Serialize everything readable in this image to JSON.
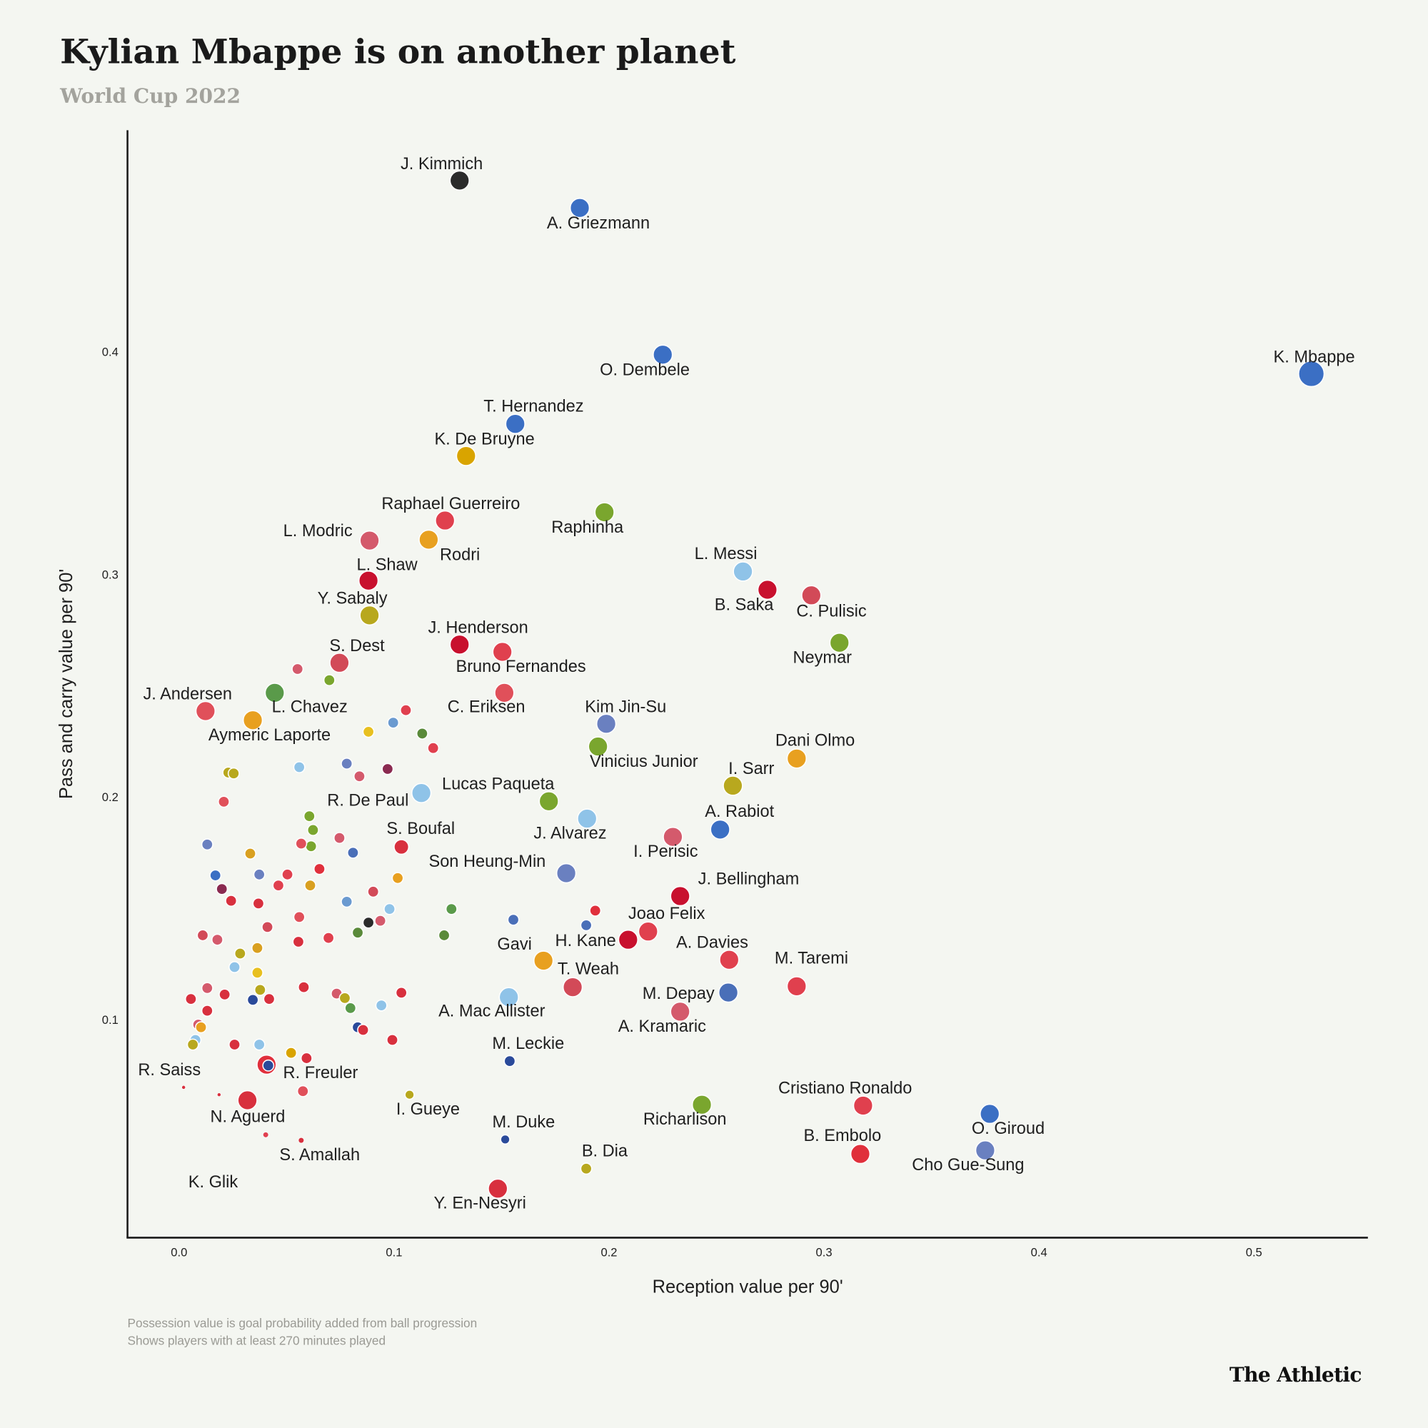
{
  "chart_data": {
    "type": "scatter",
    "title": "Kylian Mbappe is on another planet",
    "subtitle": "World Cup 2022",
    "x_label": "Reception value per 90'",
    "y_label": "Pass and carry value per 90'",
    "notes": [
      "Possession value is goal probability added from ball progression",
      "Shows players with at least 270 minutes played"
    ],
    "source": "The Athletic",
    "xlim": [
      -0.024,
      0.553
    ],
    "ylim": [
      0.003,
      0.5
    ],
    "xticks": [
      {
        "value": 0,
        "label": "0.0"
      },
      0.1,
      0.2,
      0.3,
      0.4,
      0.5
    ],
    "yticks": [
      0.1,
      0.2,
      0.3,
      0.4
    ],
    "labels": [
      "J. Kimmich",
      "A. Griezmann",
      "K. Mbappe",
      "O. Dembele",
      "T. Hernandez",
      "K. De Bruyne",
      "Raphael Guerreiro",
      "Raphinha",
      "L. Modric",
      "Rodri",
      "L. Shaw",
      "Y. Sabaly",
      "L. Messi",
      "B. Saka",
      "C. Pulisic",
      "Neymar",
      "J. Henderson",
      "Bruno Fernandes",
      "S. Dest",
      "J. Andersen",
      "L. Chavez",
      "Aymeric Laporte",
      "C. Eriksen",
      "Kim Jin-Su",
      "Dani Olmo",
      "Vinicius Junior",
      "I. Sarr",
      "Lucas Paqueta",
      "R. De Paul",
      "A. Rabiot",
      "S. Boufal",
      "J. Alvarez",
      "I. Perisic",
      "Son Heung-Min",
      "J. Bellingham",
      "Joao Felix",
      "H. Kane",
      "Gavi",
      "A. Davies",
      "M. Taremi",
      "T. Weah",
      "M. Depay",
      "A. Mac Allister",
      "A. Kramaric",
      "M. Leckie",
      "Cristiano Ronaldo",
      "O. Giroud",
      "Richarlison",
      "B. Embolo",
      "Cho Gue-Sung",
      "M. Duke",
      "B. Dia",
      "I. Gueye",
      "Y. En-Nesyri",
      "R. Saiss",
      "R. Freuler",
      "N. Aguerd",
      "S. Amallah",
      "K. Glik",
      null,
      null,
      null,
      null,
      null,
      null,
      null,
      null,
      null,
      null,
      null,
      null,
      null,
      null,
      null,
      null,
      null,
      null,
      null,
      null,
      null,
      null,
      null,
      null,
      null,
      null,
      null,
      null,
      null,
      null,
      null,
      null,
      null,
      null,
      null,
      null,
      null,
      null,
      null,
      null,
      null,
      null,
      null,
      null,
      null,
      null,
      null,
      null,
      null,
      null,
      null,
      null,
      null,
      null,
      null,
      null,
      null,
      null,
      null,
      null,
      null,
      null,
      null,
      null,
      null,
      null,
      null,
      null,
      null,
      null,
      null,
      null,
      null,
      null,
      null,
      null,
      null,
      null,
      null
    ],
    "x": [
      0.1305,
      0.1864,
      0.5267,
      0.225,
      0.1564,
      0.1335,
      0.1237,
      0.1979,
      0.0886,
      0.1161,
      0.0881,
      0.0886,
      0.2623,
      0.2737,
      0.2941,
      0.3072,
      0.1305,
      0.1504,
      0.0746,
      0.0123,
      0.0445,
      0.0343,
      0.1513,
      0.1987,
      0.2873,
      0.1949,
      0.2576,
      0.172,
      0.1127,
      0.2517,
      0.1034,
      0.1898,
      0.2297,
      0.1801,
      0.2331,
      0.2182,
      0.2089,
      0.1695,
      0.2559,
      0.2873,
      0.1831,
      0.2555,
      0.1534,
      0.2331,
      0.1538,
      0.3182,
      0.3771,
      0.2432,
      0.3169,
      0.375,
      0.1517,
      0.1894,
      0.1072,
      0.1483,
      0.0021,
      0.0407,
      0.0186,
      0.0568,
      0.0403,
      0.0551,
      0.0699,
      0.1055,
      0.0996,
      0.0881,
      0.1131,
      0.1182,
      0.0559,
      0.078,
      0.0839,
      0.097,
      0.0229,
      0.0254,
      0.0208,
      0.0606,
      0.0623,
      0.0614,
      0.0568,
      0.0746,
      0.0809,
      0.0131,
      0.0331,
      0.0504,
      0.0653,
      0.061,
      0.0462,
      0.0373,
      0.0169,
      0.0199,
      0.0242,
      0.0369,
      0.0903,
      0.1017,
      0.078,
      0.0979,
      0.1267,
      0.0411,
      0.0559,
      0.0555,
      0.0695,
      0.0831,
      0.0881,
      0.0936,
      0.1233,
      0.1555,
      0.1936,
      0.1894,
      0.011,
      0.0178,
      0.0284,
      0.0364,
      0.0258,
      0.0364,
      0.0131,
      0.0212,
      0.0377,
      0.0419,
      0.0343,
      0.058,
      0.0733,
      0.0771,
      0.0797,
      0.0941,
      0.1034,
      0.0055,
      0.0131,
      0.0089,
      0.0102,
      0.0076,
      0.0064,
      0.0831,
      0.0856,
      0.0258,
      0.0373,
      0.0521,
      0.0593,
      0.0415,
      0.0992,
      0.0576,
      0.0318
    ],
    "values": [
      0.4774,
      0.4651,
      0.3906,
      0.3992,
      0.3681,
      0.3537,
      0.3247,
      0.3284,
      0.3157,
      0.3161,
      0.2977,
      0.2821,
      0.3018,
      0.2936,
      0.2911,
      0.2698,
      0.269,
      0.2657,
      0.2608,
      0.2391,
      0.2473,
      0.235,
      0.2473,
      0.2334,
      0.2178,
      0.2232,
      0.2056,
      0.1986,
      0.2023,
      0.1859,
      0.1781,
      0.1908,
      0.1826,
      0.1663,
      0.156,
      0.1401,
      0.1364,
      0.127,
      0.1274,
      0.1155,
      0.1151,
      0.1127,
      0.1106,
      0.1041,
      0.0819,
      0.0619,
      0.0582,
      0.0623,
      0.0402,
      0.0418,
      0.0467,
      0.0336,
      0.0668,
      0.0246,
      0.0701,
      0.0803,
      0.0668,
      0.0463,
      0.0488,
      0.258,
      0.253,
      0.2395,
      0.2339,
      0.2298,
      0.229,
      0.2225,
      0.2139,
      0.2155,
      0.2098,
      0.2131,
      0.2115,
      0.2111,
      0.1984,
      0.1919,
      0.1857,
      0.1784,
      0.1796,
      0.1821,
      0.1755,
      0.1792,
      0.1751,
      0.1657,
      0.1682,
      0.1608,
      0.1608,
      0.1657,
      0.1653,
      0.1592,
      0.1539,
      0.1527,
      0.158,
      0.1641,
      0.1535,
      0.1502,
      0.1502,
      0.1421,
      0.1466,
      0.1355,
      0.1372,
      0.1396,
      0.1441,
      0.1449,
      0.1384,
      0.1454,
      0.1495,
      0.1429,
      0.1384,
      0.1364,
      0.1302,
      0.1327,
      0.1241,
      0.1216,
      0.1147,
      0.1118,
      0.1139,
      0.1098,
      0.1094,
      0.1151,
      0.1122,
      0.1102,
      0.1057,
      0.1069,
      0.1126,
      0.1098,
      0.1045,
      0.0983,
      0.0971,
      0.0914,
      0.0893,
      0.0971,
      0.0959,
      0.0893,
      0.0893,
      0.0856,
      0.0832,
      0.0799,
      0.0914,
      0.0684,
      0.0643
    ],
    "colors": [
      "#2b2b2b",
      "#3b6fc4",
      "#3b6fc4",
      "#3b6fc4",
      "#3b6fc4",
      "#d9a400",
      "#e0404e",
      "#7aa62e",
      "#d45a6c",
      "#e8a020",
      "#c8102e",
      "#b8a81e",
      "#8fc3e8",
      "#c8102e",
      "#d24a58",
      "#7aa62e",
      "#c8102e",
      "#e0404e",
      "#d24a58",
      "#e0505a",
      "#5a9a4a",
      "#e8a020",
      "#e0505a",
      "#6a80c0",
      "#e8a020",
      "#7aa62e",
      "#b8a81e",
      "#7aa62e",
      "#8fc3e8",
      "#3b6fc4",
      "#d8303e",
      "#8fc3e8",
      "#d45a6c",
      "#6a80c0",
      "#c8102e",
      "#e0404e",
      "#c8102e",
      "#e8a020",
      "#e0404e",
      "#e0404e",
      "#d24a58",
      "#4a6fb8",
      "#8fc3e8",
      "#d45a6c",
      "#2a4a9a",
      "#e0404e",
      "#3b6fc4",
      "#7aa62e",
      "#e0303c",
      "#6a80c0",
      "#2a4a9a",
      "#b8a81e",
      "#b8a81e",
      "#d8303e",
      "#d8303e",
      "#e0303c",
      "#d8303e",
      "#d8303e",
      "#e04050",
      "#d45a6c",
      "#7aa62e",
      "#e0404e",
      "#6a9ad0",
      "#e8c020",
      "#5a8a3a",
      "#e0404e",
      "#8fc3e8",
      "#6a80c0",
      "#d45a6c",
      "#8a2a50",
      "#b8a81e",
      "#b8a81e",
      "#e0505a",
      "#7aa62e",
      "#7aa62e",
      "#7aa62e",
      "#e0505a",
      "#d45a6c",
      "#4a6fb8",
      "#6a80c0",
      "#d9a020",
      "#e0404e",
      "#e0303c",
      "#d9a020",
      "#e0404e",
      "#6a80c0",
      "#3b6fc4",
      "#8a2a50",
      "#d8303e",
      "#d8303e",
      "#d24a58",
      "#e8a020",
      "#6a9ad0",
      "#8fc3e8",
      "#5a9a4a",
      "#d24a58",
      "#e0505a",
      "#d8303e",
      "#e0404e",
      "#5a8a3a",
      "#2b2b2b",
      "#d45a6c",
      "#5a8a3a",
      "#4a6fb8",
      "#e0303c",
      "#4a6fb8",
      "#d24a58",
      "#d45a6c",
      "#b8a81e",
      "#d9a020",
      "#8fc3e8",
      "#e8c020",
      "#d45a6c",
      "#d8303e",
      "#b8a81e",
      "#d8303e",
      "#2a4a9a",
      "#d8303e",
      "#d45a6c",
      "#b8a81e",
      "#5a9a4a",
      "#8fc3e8",
      "#d8303e",
      "#d8303e",
      "#d8303e",
      "#d45a6c",
      "#e8a020",
      "#8fc3e8",
      "#b8a81e",
      "#2a4a9a",
      "#d8303e",
      "#d8303e",
      "#8fc3e8",
      "#d9a400",
      "#d8303e",
      "#2a4a9a",
      "#d8303e",
      "#e0505a",
      "#d8303e"
    ]
  }
}
